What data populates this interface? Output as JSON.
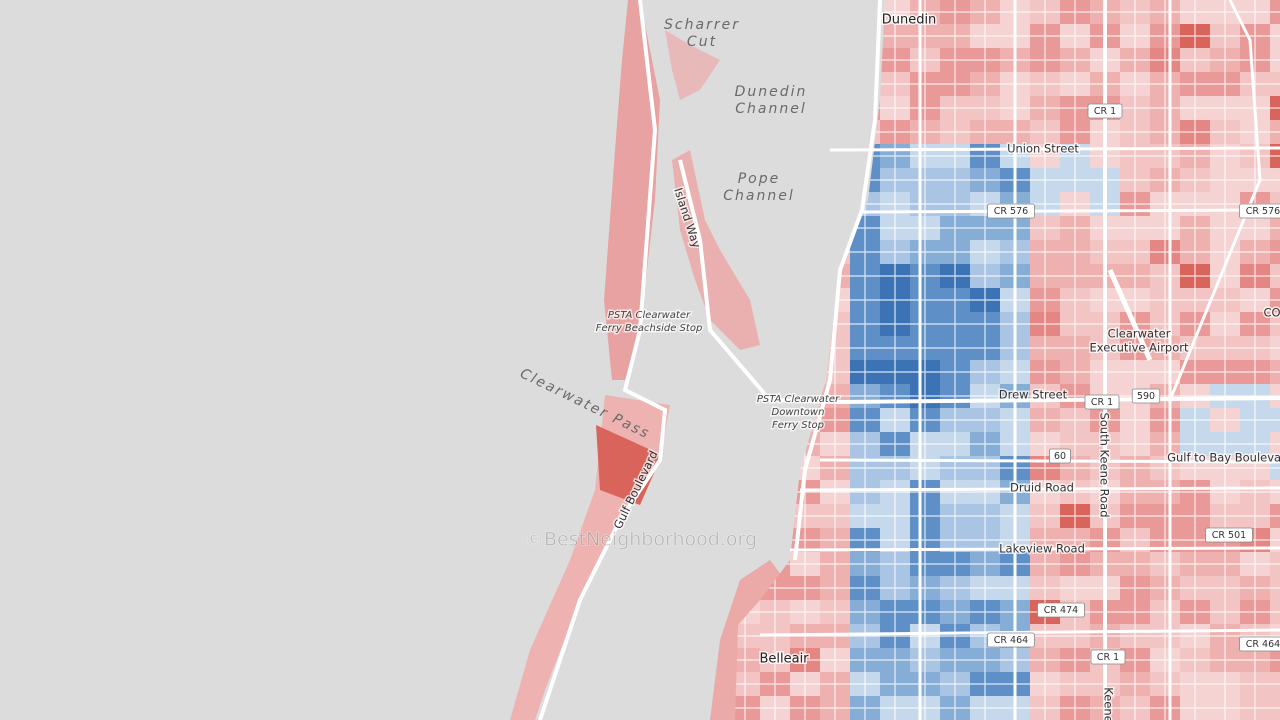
{
  "places": [
    "Dunedin",
    "Belleair"
  ],
  "water_labels": [
    [
      "Scharrer",
      "Cut"
    ],
    [
      "Dunedin",
      "Channel"
    ],
    [
      "Pope",
      "Channel"
    ],
    [
      "Clearwater Pass"
    ]
  ],
  "transit_stops": [
    [
      "PSTA Clearwater",
      "Ferry Beachside Stop"
    ],
    [
      "PSTA Clearwater",
      "Downtown",
      "Ferry Stop"
    ]
  ],
  "poi": [
    [
      "Clearwater",
      "Executive Airport"
    ]
  ],
  "streets": [
    "Union Street",
    "Drew Street",
    "Druid Road",
    "Lakeview Road",
    "Gulf to Bay Boulevard",
    "Island Way",
    "Gulf Boulevard",
    "South Keene Road",
    "Keene"
  ],
  "route_shields": [
    "CR 1",
    "CR 576",
    "CR 576",
    "CR 1",
    "590",
    "60",
    "CR 501",
    "CR 474",
    "CR 464",
    "CR 464",
    "CR 1"
  ],
  "edge_label": "CO",
  "watermark": "©BestNeighborhood.org"
}
